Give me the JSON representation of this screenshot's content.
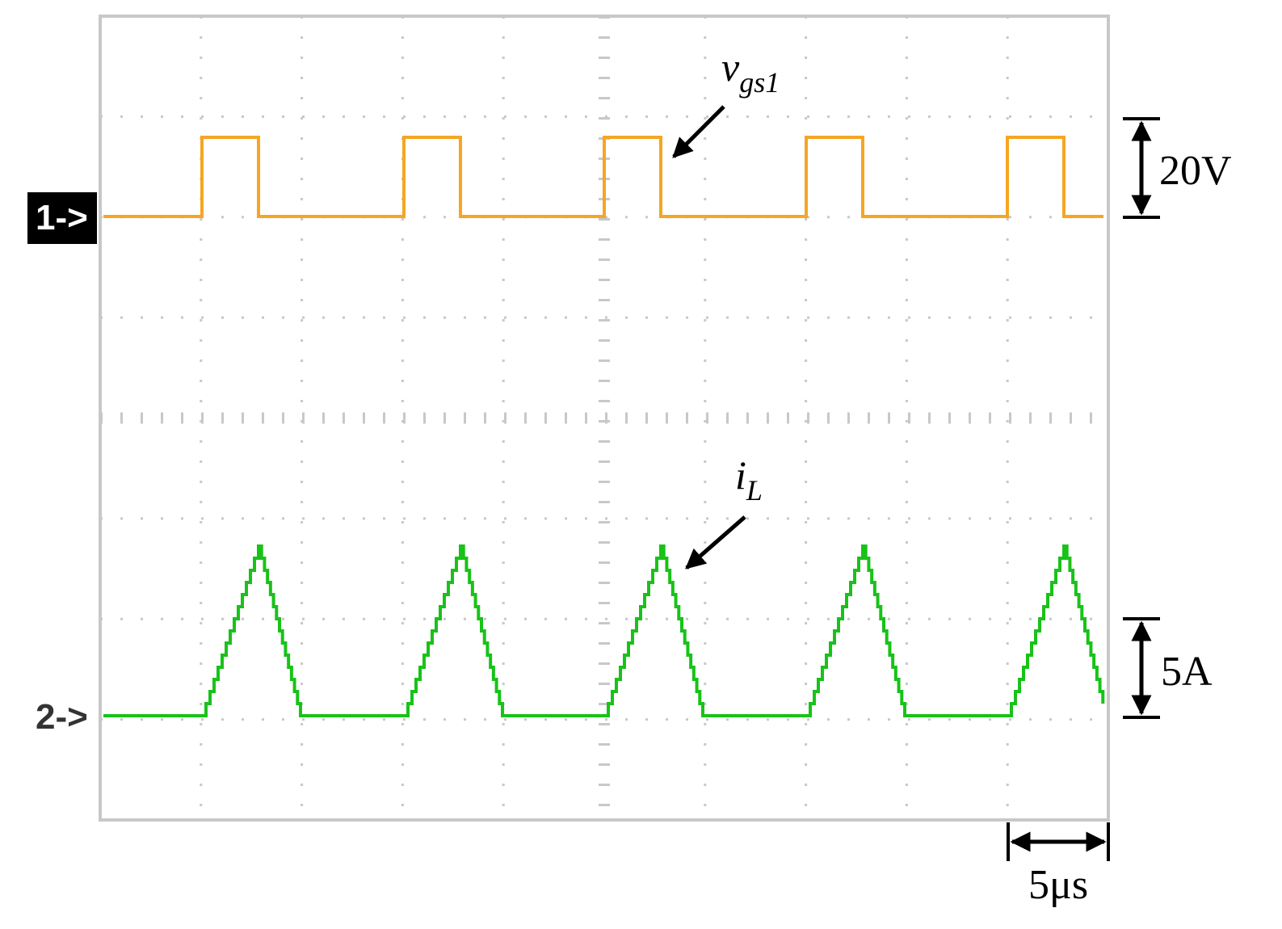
{
  "channels": [
    {
      "marker": "1->",
      "label": {
        "symbol": "v",
        "subscript": "gs1"
      },
      "scale": "20V"
    },
    {
      "marker": "2->",
      "label": {
        "symbol": "i",
        "subscript": "L"
      },
      "scale": "5A"
    }
  ],
  "time_scale": "5μs"
}
